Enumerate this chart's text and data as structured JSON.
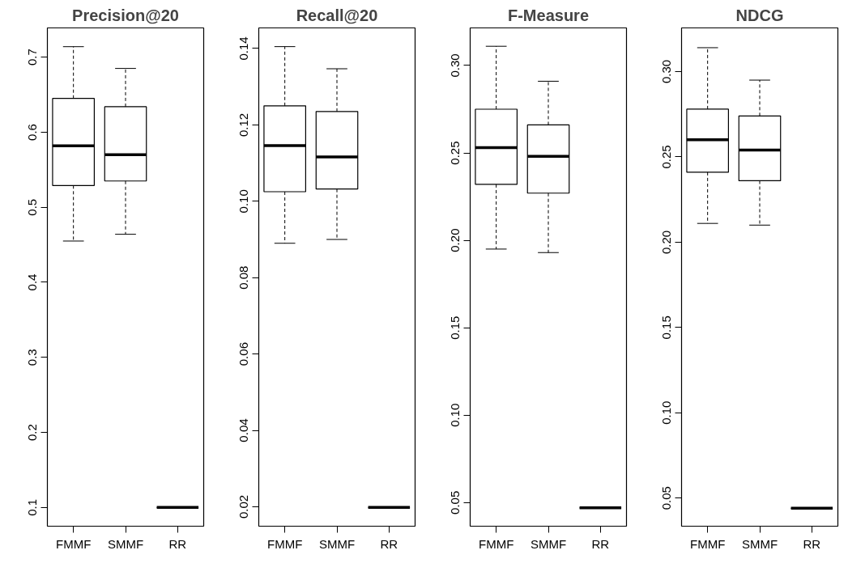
{
  "chart_data": [
    {
      "type": "box",
      "title": "Precision@20",
      "categories": [
        "FMMF",
        "SMMF",
        "RR"
      ],
      "ylim": [
        0.075,
        0.739
      ],
      "yticks": [
        0.1,
        0.2,
        0.3,
        0.4,
        0.5,
        0.6,
        0.7
      ],
      "boxes": [
        {
          "low": 0.455,
          "q1": 0.529,
          "median": 0.582,
          "q3": 0.645,
          "high": 0.714
        },
        {
          "low": 0.464,
          "q1": 0.535,
          "median": 0.57,
          "q3": 0.634,
          "high": 0.685
        },
        {
          "low": 0.1,
          "q1": 0.1,
          "median": 0.1,
          "q3": 0.1,
          "high": 0.1
        }
      ]
    },
    {
      "type": "box",
      "title": "Recall@20",
      "categories": [
        "FMMF",
        "SMMF",
        "RR"
      ],
      "ylim": [
        0.0149,
        0.1454
      ],
      "yticks": [
        {
          "value": 0.02,
          "label": "0.02"
        },
        {
          "value": 0.04,
          "label": "0.04"
        },
        {
          "value": 0.06,
          "label": "0.06"
        },
        {
          "value": 0.08,
          "label": "0.08"
        },
        {
          "value": 0.1,
          "label": "0.10"
        },
        {
          "value": 0.12,
          "label": "0.12"
        },
        {
          "value": 0.14,
          "label": "0.14"
        }
      ],
      "boxes": [
        {
          "low": 0.089,
          "q1": 0.1025,
          "median": 0.1146,
          "q3": 0.125,
          "high": 0.1405
        },
        {
          "low": 0.09,
          "q1": 0.1032,
          "median": 0.1116,
          "q3": 0.1235,
          "high": 0.1347
        },
        {
          "low": 0.0198,
          "q1": 0.0198,
          "median": 0.0198,
          "q3": 0.0198,
          "high": 0.0198
        }
      ]
    },
    {
      "type": "box",
      "title": "F-Measure",
      "categories": [
        "FMMF",
        "SMMF",
        "RR"
      ],
      "ylim": [
        0.0365,
        0.3215
      ],
      "yticks": [
        0.05,
        {
          "value": 0.1,
          "label": "0.10"
        },
        0.15,
        {
          "value": 0.2,
          "label": "0.20"
        },
        0.25,
        {
          "value": 0.3,
          "label": "0.30"
        }
      ],
      "boxes": [
        {
          "low": 0.195,
          "q1": 0.232,
          "median": 0.253,
          "q3": 0.275,
          "high": 0.311
        },
        {
          "low": 0.193,
          "q1": 0.227,
          "median": 0.248,
          "q3": 0.266,
          "high": 0.291
        },
        {
          "low": 0.047,
          "q1": 0.047,
          "median": 0.047,
          "q3": 0.047,
          "high": 0.047
        }
      ]
    },
    {
      "type": "box",
      "title": "NDCG",
      "categories": [
        "FMMF",
        "SMMF",
        "RR"
      ],
      "ylim": [
        0.0335,
        0.3256
      ],
      "yticks": [
        0.05,
        {
          "value": 0.1,
          "label": "0.10"
        },
        0.15,
        {
          "value": 0.2,
          "label": "0.20"
        },
        0.25,
        {
          "value": 0.3,
          "label": "0.30"
        }
      ],
      "boxes": [
        {
          "low": 0.211,
          "q1": 0.241,
          "median": 0.26,
          "q3": 0.278,
          "high": 0.314
        },
        {
          "low": 0.21,
          "q1": 0.236,
          "median": 0.254,
          "q3": 0.274,
          "high": 0.295
        },
        {
          "low": 0.044,
          "q1": 0.044,
          "median": 0.044,
          "q3": 0.044,
          "high": 0.044
        }
      ]
    }
  ]
}
